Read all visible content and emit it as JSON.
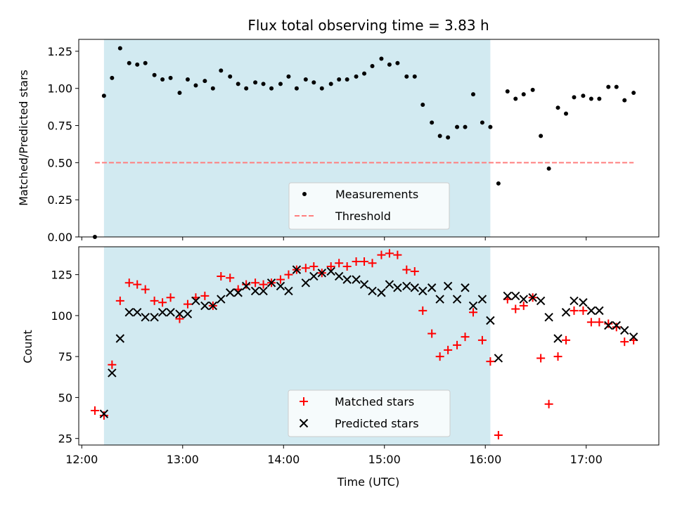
{
  "title": "Flux total observing time = 3.83 h",
  "x_axis": {
    "label": "Time (UTC)",
    "range_hours": [
      11.97,
      17.72
    ],
    "ticks": [
      {
        "value": 12,
        "label": "12:00"
      },
      {
        "value": 13,
        "label": "13:00"
      },
      {
        "value": 14,
        "label": "14:00"
      },
      {
        "value": 15,
        "label": "15:00"
      },
      {
        "value": 16,
        "label": "16:00"
      },
      {
        "value": 17,
        "label": "17:00"
      }
    ]
  },
  "shaded_span_hours": [
    12.22,
    16.05
  ],
  "colors": {
    "shade": "#add8e6",
    "measurements": "#000000",
    "threshold": "#ff7f7f",
    "matched": "#ff0000",
    "predicted": "#000000"
  },
  "chart_data": [
    {
      "type": "scatter",
      "ylabel": "Matched/Predicted stars",
      "ylim": [
        0,
        1.33
      ],
      "yticks": [
        "0.00",
        "0.25",
        "0.50",
        "0.75",
        "1.00",
        "1.25"
      ],
      "legend_position": "lower-center",
      "series": [
        {
          "name": "Measurements",
          "marker": "dot",
          "x": [
            12.13,
            12.22,
            12.3,
            12.38,
            12.47,
            12.55,
            12.63,
            12.72,
            12.8,
            12.88,
            12.97,
            13.05,
            13.13,
            13.22,
            13.3,
            13.38,
            13.47,
            13.55,
            13.63,
            13.72,
            13.8,
            13.88,
            13.97,
            14.05,
            14.13,
            14.22,
            14.3,
            14.38,
            14.47,
            14.55,
            14.63,
            14.72,
            14.8,
            14.88,
            14.97,
            15.05,
            15.13,
            15.22,
            15.3,
            15.38,
            15.47,
            15.55,
            15.63,
            15.72,
            15.8,
            15.88,
            15.97,
            16.05,
            16.13,
            16.22,
            16.3,
            16.38,
            16.47,
            16.55,
            16.63,
            16.72,
            16.8,
            16.88,
            16.97,
            17.05,
            17.13,
            17.22,
            17.3,
            17.38,
            17.47
          ],
          "y": [
            0.0,
            0.95,
            1.07,
            1.27,
            1.17,
            1.16,
            1.17,
            1.09,
            1.06,
            1.07,
            0.97,
            1.06,
            1.02,
            1.05,
            1.0,
            1.12,
            1.08,
            1.03,
            1.0,
            1.04,
            1.03,
            1.0,
            1.03,
            1.08,
            1.0,
            1.06,
            1.04,
            1.0,
            1.03,
            1.06,
            1.06,
            1.08,
            1.1,
            1.15,
            1.2,
            1.16,
            1.17,
            1.08,
            1.08,
            0.89,
            0.77,
            0.68,
            0.67,
            0.74,
            0.74,
            0.96,
            0.77,
            0.74,
            0.36,
            0.98,
            0.93,
            0.96,
            0.99,
            0.68,
            0.46,
            0.87,
            0.83,
            0.94,
            0.95,
            0.93,
            0.93,
            1.01,
            1.01,
            0.92,
            0.97
          ]
        },
        {
          "name": "Threshold",
          "marker": "dashed-line",
          "x": [
            12.13,
            17.47
          ],
          "y": [
            0.5,
            0.5
          ]
        }
      ]
    },
    {
      "type": "scatter",
      "xlabel": "Time (UTC)",
      "ylabel": "Count",
      "ylim": [
        21,
        142
      ],
      "yticks": [
        "25",
        "50",
        "75",
        "100",
        "125"
      ],
      "legend_position": "lower-center",
      "series": [
        {
          "name": "Matched stars",
          "marker": "plus",
          "x": [
            12.13,
            12.22,
            12.3,
            12.38,
            12.47,
            12.55,
            12.63,
            12.72,
            12.8,
            12.88,
            12.97,
            13.05,
            13.13,
            13.22,
            13.3,
            13.38,
            13.47,
            13.55,
            13.63,
            13.72,
            13.8,
            13.88,
            13.97,
            14.05,
            14.13,
            14.22,
            14.3,
            14.38,
            14.47,
            14.55,
            14.63,
            14.72,
            14.8,
            14.88,
            14.97,
            15.05,
            15.13,
            15.22,
            15.3,
            15.38,
            15.47,
            15.55,
            15.63,
            15.72,
            15.8,
            15.88,
            15.97,
            16.05,
            16.13,
            16.22,
            16.3,
            16.38,
            16.47,
            16.55,
            16.63,
            16.72,
            16.8,
            16.88,
            16.97,
            17.05,
            17.13,
            17.22,
            17.3,
            17.38,
            17.47
          ],
          "y": [
            42,
            39,
            70,
            109,
            120,
            119,
            116,
            109,
            108,
            111,
            98,
            107,
            111,
            112,
            106,
            124,
            123,
            116,
            119,
            120,
            119,
            120,
            122,
            125,
            128,
            129,
            130,
            126,
            130,
            132,
            130,
            133,
            133,
            132,
            137,
            138,
            137,
            128,
            127,
            103,
            89,
            75,
            79,
            82,
            87,
            102,
            85,
            72,
            27,
            110,
            104,
            106,
            111,
            74,
            46,
            75,
            85,
            103,
            103,
            96,
            96,
            95,
            93,
            84,
            85
          ]
        },
        {
          "name": "Predicted stars",
          "marker": "x",
          "x": [
            12.13,
            12.22,
            12.3,
            12.38,
            12.47,
            12.55,
            12.63,
            12.72,
            12.8,
            12.88,
            12.97,
            13.05,
            13.13,
            13.22,
            13.3,
            13.38,
            13.47,
            13.55,
            13.63,
            13.72,
            13.8,
            13.88,
            13.97,
            14.05,
            14.13,
            14.22,
            14.3,
            14.38,
            14.47,
            14.55,
            14.63,
            14.72,
            14.8,
            14.88,
            14.97,
            15.05,
            15.13,
            15.22,
            15.3,
            15.38,
            15.47,
            15.55,
            15.63,
            15.72,
            15.8,
            15.88,
            15.97,
            16.05,
            16.13,
            16.22,
            16.3,
            16.38,
            16.47,
            16.55,
            16.63,
            16.72,
            16.8,
            16.88,
            16.97,
            17.05,
            17.13,
            17.22,
            17.3,
            17.38,
            17.47
          ],
          "y": [
            null,
            40,
            65,
            86,
            102,
            102,
            99,
            99,
            102,
            102,
            101,
            101,
            109,
            106,
            106,
            110,
            114,
            114,
            118,
            115,
            115,
            120,
            118,
            115,
            128,
            120,
            124,
            126,
            127,
            124,
            122,
            122,
            119,
            115,
            114,
            119,
            117,
            118,
            117,
            115,
            117,
            110,
            118,
            110,
            117,
            106,
            110,
            97,
            74,
            112,
            112,
            110,
            111,
            109,
            99,
            86,
            102,
            109,
            108,
            103,
            103,
            94,
            94,
            91,
            87
          ]
        }
      ]
    }
  ]
}
